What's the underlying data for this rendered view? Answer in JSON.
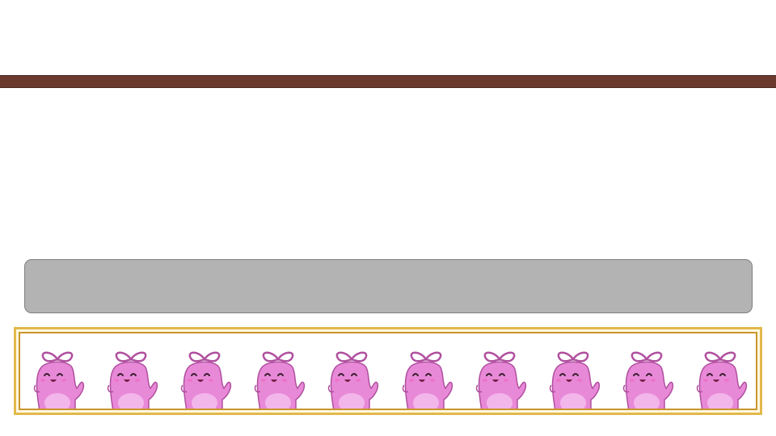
{
  "slide": {
    "band_color": "#6b3a2e",
    "box_color": "#b3b3b3",
    "frame_color": "#e2b84a"
  },
  "decoration": {
    "icon": "pink-mascot-icon",
    "count": 10,
    "body_color": "#e889d8",
    "outline_color": "#b0509f"
  }
}
